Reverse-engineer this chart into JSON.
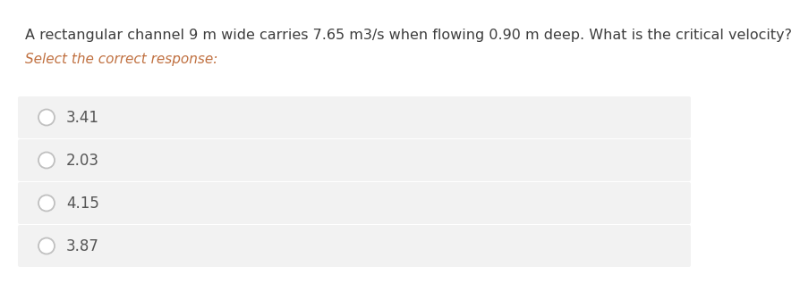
{
  "question": "A rectangular channel 9 m wide carries 7.65 m3/s when flowing 0.90 m deep. What is the critical velocity?",
  "prompt": "Select the correct response:",
  "options": [
    "3.41",
    "2.03",
    "4.15",
    "3.87"
  ],
  "bg_color": "#ffffff",
  "option_bg_color": "#f2f2f2",
  "question_color": "#3d3d3d",
  "prompt_color": "#c07040",
  "option_text_color": "#555555",
  "circle_edge_color": "#c0c0c0",
  "option_font_size": 12,
  "question_font_size": 11.5,
  "prompt_font_size": 11
}
